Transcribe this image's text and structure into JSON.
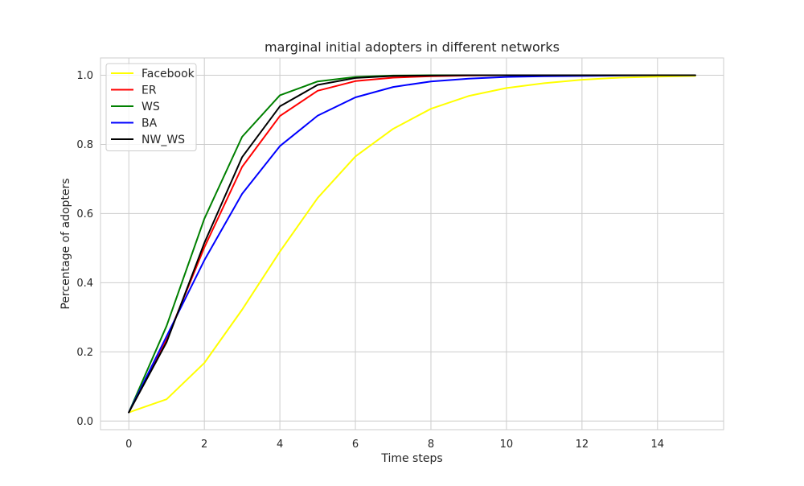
{
  "chart_data": {
    "type": "line",
    "title": "marginal initial adopters in different networks",
    "xlabel": "Time steps",
    "ylabel": "Percentage of adopters",
    "xlim": [
      -0.75,
      15.75
    ],
    "ylim": [
      -0.025,
      1.05
    ],
    "x_ticks": [
      0,
      2,
      4,
      6,
      8,
      10,
      12,
      14
    ],
    "y_ticks": [
      0.0,
      0.2,
      0.4,
      0.6,
      0.8,
      1.0
    ],
    "x_tick_labels": [
      "0",
      "2",
      "4",
      "6",
      "8",
      "10",
      "12",
      "14"
    ],
    "y_tick_labels": [
      "0.0",
      "0.2",
      "0.4",
      "0.6",
      "0.8",
      "1.0"
    ],
    "grid": true,
    "legend_position": "top-left",
    "x": [
      0,
      1,
      2,
      3,
      4,
      5,
      6,
      7,
      8,
      9,
      10,
      11,
      12,
      13,
      14,
      15
    ],
    "series": [
      {
        "name": "Facebook",
        "color": "#ffff00",
        "values": [
          0.025,
          0.063,
          0.168,
          0.322,
          0.49,
          0.645,
          0.765,
          0.845,
          0.903,
          0.94,
          0.963,
          0.977,
          0.987,
          0.993,
          0.996,
          0.998
        ]
      },
      {
        "name": "ER",
        "color": "#ff0000",
        "values": [
          0.025,
          0.235,
          0.502,
          0.735,
          0.882,
          0.955,
          0.983,
          0.993,
          0.997,
          0.999,
          1.0,
          1.0,
          1.0,
          1.0,
          1.0,
          1.0
        ]
      },
      {
        "name": "WS",
        "color": "#008000",
        "values": [
          0.025,
          0.275,
          0.585,
          0.822,
          0.942,
          0.982,
          0.995,
          0.999,
          1.0,
          1.0,
          1.0,
          1.0,
          1.0,
          1.0,
          1.0,
          1.0
        ]
      },
      {
        "name": "BA",
        "color": "#0000ff",
        "values": [
          0.025,
          0.245,
          0.465,
          0.657,
          0.795,
          0.883,
          0.936,
          0.966,
          0.982,
          0.99,
          0.995,
          0.997,
          0.998,
          0.999,
          1.0,
          1.0
        ]
      },
      {
        "name": "NW_WS",
        "color": "#000000",
        "values": [
          0.025,
          0.228,
          0.515,
          0.763,
          0.91,
          0.972,
          0.992,
          0.998,
          0.999,
          1.0,
          1.0,
          1.0,
          1.0,
          1.0,
          1.0,
          1.0
        ]
      }
    ]
  }
}
